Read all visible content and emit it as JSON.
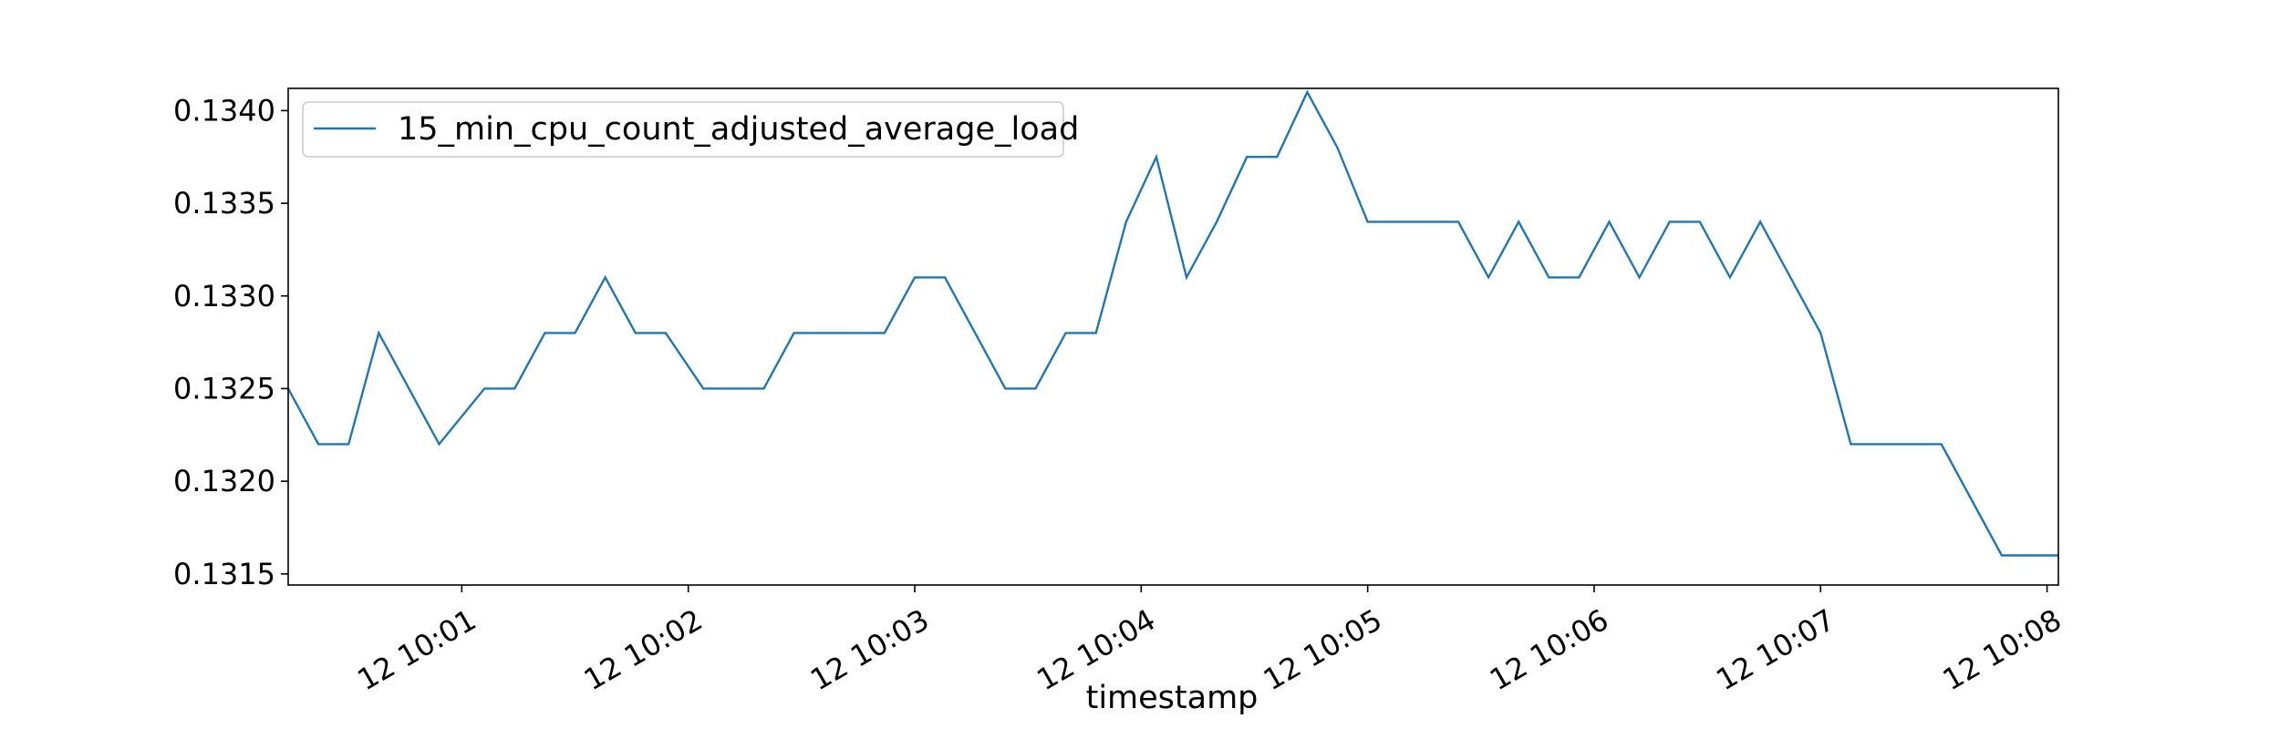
{
  "chart_data": {
    "type": "line",
    "xlabel": "timestamp",
    "ylabel": "",
    "legend_position": "top-left",
    "grid": false,
    "ylim": [
      0.13144,
      0.13412
    ],
    "xlim": [
      "12 10:00:14",
      "12 10:08:03"
    ],
    "y_ticks": [
      {
        "value": 0.1315,
        "label": "0.1315"
      },
      {
        "value": 0.132,
        "label": "0.1320"
      },
      {
        "value": 0.1325,
        "label": "0.1325"
      },
      {
        "value": 0.133,
        "label": "0.1330"
      },
      {
        "value": 0.1335,
        "label": "0.1335"
      },
      {
        "value": 0.134,
        "label": "0.1340"
      }
    ],
    "x_ticks": [
      {
        "time": "12 10:01:00",
        "label": "12 10:01"
      },
      {
        "time": "12 10:02:00",
        "label": "12 10:02"
      },
      {
        "time": "12 10:03:00",
        "label": "12 10:03"
      },
      {
        "time": "12 10:04:00",
        "label": "12 10:04"
      },
      {
        "time": "12 10:05:00",
        "label": "12 10:05"
      },
      {
        "time": "12 10:06:00",
        "label": "12 10:06"
      },
      {
        "time": "12 10:07:00",
        "label": "12 10:07"
      },
      {
        "time": "12 10:08:00",
        "label": "12 10:08"
      }
    ],
    "series": [
      {
        "name": "15_min_cpu_count_adjusted_average_load",
        "color": "#1f77b4",
        "x": [
          "12 10:00:14",
          "12 10:00:22",
          "12 10:00:30",
          "12 10:00:38",
          "12 10:00:46",
          "12 10:00:54",
          "12 10:01:06",
          "12 10:01:14",
          "12 10:01:22",
          "12 10:01:30",
          "12 10:01:38",
          "12 10:01:46",
          "12 10:01:54",
          "12 10:02:04",
          "12 10:02:12",
          "12 10:02:20",
          "12 10:02:28",
          "12 10:02:36",
          "12 10:02:44",
          "12 10:02:52",
          "12 10:03:00",
          "12 10:03:08",
          "12 10:03:16",
          "12 10:03:24",
          "12 10:03:32",
          "12 10:03:40",
          "12 10:03:48",
          "12 10:03:56",
          "12 10:04:04",
          "12 10:04:12",
          "12 10:04:20",
          "12 10:04:28",
          "12 10:04:36",
          "12 10:04:44",
          "12 10:04:52",
          "12 10:05:00",
          "12 10:05:08",
          "12 10:05:16",
          "12 10:05:24",
          "12 10:05:32",
          "12 10:05:40",
          "12 10:05:48",
          "12 10:05:56",
          "12 10:06:04",
          "12 10:06:12",
          "12 10:06:20",
          "12 10:06:28",
          "12 10:06:36",
          "12 10:06:44",
          "12 10:06:52",
          "12 10:07:00",
          "12 10:07:08",
          "12 10:07:16",
          "12 10:07:24",
          "12 10:07:32",
          "12 10:07:40",
          "12 10:07:48",
          "12 10:07:56",
          "12 10:08:03"
        ],
        "y": [
          0.1325,
          0.1322,
          0.1322,
          0.1328,
          0.1325,
          0.1322,
          0.1325,
          0.1325,
          0.1328,
          0.1328,
          0.1331,
          0.1328,
          0.1328,
          0.1325,
          0.1325,
          0.1325,
          0.1328,
          0.1328,
          0.1328,
          0.1328,
          0.1331,
          0.1331,
          0.1328,
          0.1325,
          0.1325,
          0.1328,
          0.1328,
          0.1334,
          0.13375,
          0.1331,
          0.1334,
          0.13375,
          0.13375,
          0.1341,
          0.1338,
          0.1334,
          0.1334,
          0.1334,
          0.1334,
          0.1331,
          0.1334,
          0.1331,
          0.1331,
          0.1334,
          0.1331,
          0.1334,
          0.1334,
          0.1331,
          0.1334,
          0.1331,
          0.1328,
          0.1322,
          0.1322,
          0.1322,
          0.1322,
          0.1319,
          0.1316,
          0.1316,
          0.1316
        ]
      }
    ]
  }
}
